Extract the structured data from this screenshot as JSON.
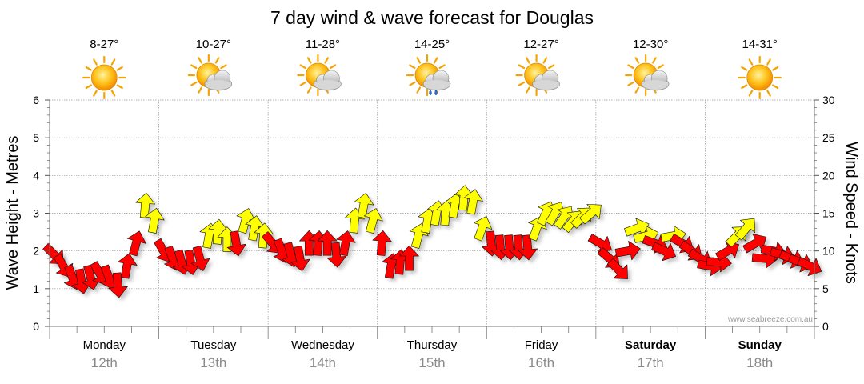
{
  "title": "7 day wind & wave forecast for Douglas",
  "left_axis_label": "Wave Height - Metres",
  "right_axis_label": "Wind Speed - Knots",
  "watermark": "www.seabreeze.com.au",
  "days": [
    {
      "name": "Monday",
      "date": "12th",
      "temp": "8-27°",
      "icon": "sun-icon",
      "bold": false
    },
    {
      "name": "Tuesday",
      "date": "13th",
      "temp": "10-27°",
      "icon": "sun-cloud-icon",
      "bold": false
    },
    {
      "name": "Wednesday",
      "date": "14th",
      "temp": "11-28°",
      "icon": "sun-cloud-icon",
      "bold": false
    },
    {
      "name": "Thursday",
      "date": "15th",
      "temp": "14-25°",
      "icon": "sun-cloud-rain-icon",
      "bold": false
    },
    {
      "name": "Friday",
      "date": "16th",
      "temp": "12-27°",
      "icon": "sun-cloud-icon",
      "bold": false
    },
    {
      "name": "Saturday",
      "date": "17th",
      "temp": "12-30°",
      "icon": "sun-cloud-icon",
      "bold": true
    },
    {
      "name": "Sunday",
      "date": "18th",
      "temp": "14-31°",
      "icon": "sun-icon",
      "bold": true
    }
  ],
  "colors": {
    "strong_wind": "#ff0000",
    "moderate_wind": "#ffff00",
    "grid": "#999999"
  },
  "chart_data": {
    "type": "line",
    "title": "7 day wind & wave forecast for Douglas",
    "ylabel": "Wave Height - Metres",
    "y2label": "Wind Speed - Knots",
    "ylim": [
      0,
      6
    ],
    "y2lim": [
      0,
      30
    ],
    "yticks": [
      "0",
      "1",
      "2",
      "3",
      "4",
      "5",
      "6"
    ],
    "y2ticks": [
      "0",
      "5",
      "10",
      "15",
      "20",
      "25",
      "30"
    ],
    "grid": true,
    "series": [
      {
        "name": "Wind Speed - Knots",
        "marker": "arrow",
        "values": [
          {
            "day": 0,
            "h": 1,
            "speed": 9.5,
            "dir": 135,
            "color": "red"
          },
          {
            "day": 0,
            "h": 3,
            "speed": 8,
            "dir": 150,
            "color": "red"
          },
          {
            "day": 0,
            "h": 5,
            "speed": 6.5,
            "dir": 160,
            "color": "red"
          },
          {
            "day": 0,
            "h": 7,
            "speed": 6,
            "dir": 170,
            "color": "red"
          },
          {
            "day": 0,
            "h": 9,
            "speed": 6.5,
            "dir": 165,
            "color": "red"
          },
          {
            "day": 0,
            "h": 11,
            "speed": 7,
            "dir": 150,
            "color": "red"
          },
          {
            "day": 0,
            "h": 13,
            "speed": 6.5,
            "dir": 160,
            "color": "red"
          },
          {
            "day": 0,
            "h": 15,
            "speed": 5.5,
            "dir": 175,
            "color": "red"
          },
          {
            "day": 0,
            "h": 17,
            "speed": 8,
            "dir": 10,
            "color": "red"
          },
          {
            "day": 0,
            "h": 19,
            "speed": 11,
            "dir": 15,
            "color": "red"
          },
          {
            "day": 0,
            "h": 21,
            "speed": 16,
            "dir": 5,
            "color": "yellow"
          },
          {
            "day": 0,
            "h": 23,
            "speed": 14,
            "dir": 10,
            "color": "yellow"
          },
          {
            "day": 1,
            "h": 1,
            "speed": 10,
            "dir": 150,
            "color": "red"
          },
          {
            "day": 1,
            "h": 3,
            "speed": 9,
            "dir": 160,
            "color": "red"
          },
          {
            "day": 1,
            "h": 5,
            "speed": 8.5,
            "dir": 165,
            "color": "red"
          },
          {
            "day": 1,
            "h": 7,
            "speed": 8.5,
            "dir": 170,
            "color": "red"
          },
          {
            "day": 1,
            "h": 9,
            "speed": 9,
            "dir": 165,
            "color": "red"
          },
          {
            "day": 1,
            "h": 11,
            "speed": 12,
            "dir": 10,
            "color": "yellow"
          },
          {
            "day": 1,
            "h": 13,
            "speed": 12.5,
            "dir": 5,
            "color": "yellow"
          },
          {
            "day": 1,
            "h": 15,
            "speed": 11.5,
            "dir": 0,
            "color": "yellow"
          },
          {
            "day": 1,
            "h": 17,
            "speed": 11,
            "dir": 170,
            "color": "red"
          },
          {
            "day": 1,
            "h": 19,
            "speed": 14,
            "dir": 15,
            "color": "yellow"
          },
          {
            "day": 1,
            "h": 21,
            "speed": 13,
            "dir": 10,
            "color": "yellow"
          },
          {
            "day": 1,
            "h": 23,
            "speed": 12,
            "dir": 5,
            "color": "yellow"
          },
          {
            "day": 2,
            "h": 1,
            "speed": 11,
            "dir": 140,
            "color": "red"
          },
          {
            "day": 2,
            "h": 3,
            "speed": 10,
            "dir": 160,
            "color": "red"
          },
          {
            "day": 2,
            "h": 5,
            "speed": 9.5,
            "dir": 165,
            "color": "red"
          },
          {
            "day": 2,
            "h": 7,
            "speed": 9,
            "dir": 170,
            "color": "red"
          },
          {
            "day": 2,
            "h": 9,
            "speed": 11,
            "dir": 0,
            "color": "red"
          },
          {
            "day": 2,
            "h": 11,
            "speed": 11,
            "dir": 5,
            "color": "red"
          },
          {
            "day": 2,
            "h": 13,
            "speed": 11,
            "dir": 0,
            "color": "red"
          },
          {
            "day": 2,
            "h": 15,
            "speed": 9.5,
            "dir": 175,
            "color": "red"
          },
          {
            "day": 2,
            "h": 17,
            "speed": 11,
            "dir": 10,
            "color": "red"
          },
          {
            "day": 2,
            "h": 19,
            "speed": 14,
            "dir": 5,
            "color": "yellow"
          },
          {
            "day": 2,
            "h": 21,
            "speed": 16,
            "dir": 10,
            "color": "yellow"
          },
          {
            "day": 2,
            "h": 23,
            "speed": 14,
            "dir": 15,
            "color": "yellow"
          },
          {
            "day": 3,
            "h": 1,
            "speed": 11,
            "dir": 5,
            "color": "red"
          },
          {
            "day": 3,
            "h": 3,
            "speed": 8,
            "dir": 10,
            "color": "red"
          },
          {
            "day": 3,
            "h": 5,
            "speed": 8.5,
            "dir": 5,
            "color": "red"
          },
          {
            "day": 3,
            "h": 7,
            "speed": 9,
            "dir": 0,
            "color": "red"
          },
          {
            "day": 3,
            "h": 9,
            "speed": 12,
            "dir": 15,
            "color": "yellow"
          },
          {
            "day": 3,
            "h": 11,
            "speed": 14,
            "dir": 10,
            "color": "yellow"
          },
          {
            "day": 3,
            "h": 13,
            "speed": 15,
            "dir": 10,
            "color": "yellow"
          },
          {
            "day": 3,
            "h": 15,
            "speed": 15,
            "dir": 5,
            "color": "yellow"
          },
          {
            "day": 3,
            "h": 17,
            "speed": 16,
            "dir": 10,
            "color": "yellow"
          },
          {
            "day": 3,
            "h": 19,
            "speed": 17,
            "dir": 5,
            "color": "yellow"
          },
          {
            "day": 3,
            "h": 21,
            "speed": 16.5,
            "dir": 10,
            "color": "yellow"
          },
          {
            "day": 3,
            "h": 23,
            "speed": 13,
            "dir": 20,
            "color": "yellow"
          },
          {
            "day": 4,
            "h": 1,
            "speed": 11,
            "dir": 175,
            "color": "red"
          },
          {
            "day": 4,
            "h": 3,
            "speed": 10.5,
            "dir": 175,
            "color": "red"
          },
          {
            "day": 4,
            "h": 5,
            "speed": 10.5,
            "dir": 175,
            "color": "red"
          },
          {
            "day": 4,
            "h": 7,
            "speed": 10.5,
            "dir": 175,
            "color": "red"
          },
          {
            "day": 4,
            "h": 9,
            "speed": 10.5,
            "dir": 175,
            "color": "red"
          },
          {
            "day": 4,
            "h": 11,
            "speed": 13,
            "dir": 20,
            "color": "yellow"
          },
          {
            "day": 4,
            "h": 13,
            "speed": 15,
            "dir": 25,
            "color": "yellow"
          },
          {
            "day": 4,
            "h": 15,
            "speed": 15,
            "dir": 30,
            "color": "yellow"
          },
          {
            "day": 4,
            "h": 17,
            "speed": 14.5,
            "dir": 35,
            "color": "yellow"
          },
          {
            "day": 4,
            "h": 19,
            "speed": 14,
            "dir": 40,
            "color": "yellow"
          },
          {
            "day": 4,
            "h": 21,
            "speed": 14.5,
            "dir": 45,
            "color": "yellow"
          },
          {
            "day": 4,
            "h": 23,
            "speed": 15,
            "dir": 50,
            "color": "yellow"
          },
          {
            "day": 5,
            "h": 1,
            "speed": 11,
            "dir": 120,
            "color": "red"
          },
          {
            "day": 5,
            "h": 3,
            "speed": 9,
            "dir": 130,
            "color": "red"
          },
          {
            "day": 5,
            "h": 5,
            "speed": 7.5,
            "dir": 135,
            "color": "red"
          },
          {
            "day": 5,
            "h": 7,
            "speed": 10,
            "dir": 80,
            "color": "red"
          },
          {
            "day": 5,
            "h": 9,
            "speed": 13,
            "dir": 70,
            "color": "yellow"
          },
          {
            "day": 5,
            "h": 11,
            "speed": 12,
            "dir": 75,
            "color": "yellow"
          },
          {
            "day": 5,
            "h": 13,
            "speed": 11,
            "dir": 110,
            "color": "red"
          },
          {
            "day": 5,
            "h": 15,
            "speed": 10,
            "dir": 115,
            "color": "red"
          },
          {
            "day": 5,
            "h": 17,
            "speed": 12,
            "dir": 80,
            "color": "yellow"
          },
          {
            "day": 5,
            "h": 19,
            "speed": 11,
            "dir": 120,
            "color": "red"
          },
          {
            "day": 5,
            "h": 21,
            "speed": 10,
            "dir": 125,
            "color": "red"
          },
          {
            "day": 5,
            "h": 23,
            "speed": 9,
            "dir": 120,
            "color": "red"
          },
          {
            "day": 6,
            "h": 1,
            "speed": 8,
            "dir": 100,
            "color": "red"
          },
          {
            "day": 6,
            "h": 3,
            "speed": 8.5,
            "dir": 95,
            "color": "red"
          },
          {
            "day": 6,
            "h": 5,
            "speed": 10,
            "dir": 60,
            "color": "red"
          },
          {
            "day": 6,
            "h": 7,
            "speed": 12,
            "dir": 45,
            "color": "yellow"
          },
          {
            "day": 6,
            "h": 9,
            "speed": 13,
            "dir": 40,
            "color": "yellow"
          },
          {
            "day": 6,
            "h": 11,
            "speed": 11,
            "dir": 60,
            "color": "red"
          },
          {
            "day": 6,
            "h": 13,
            "speed": 9,
            "dir": 95,
            "color": "red"
          },
          {
            "day": 6,
            "h": 15,
            "speed": 10,
            "dir": 100,
            "color": "red"
          },
          {
            "day": 6,
            "h": 17,
            "speed": 9.5,
            "dir": 105,
            "color": "red"
          },
          {
            "day": 6,
            "h": 19,
            "speed": 9,
            "dir": 110,
            "color": "red"
          },
          {
            "day": 6,
            "h": 21,
            "speed": 8.5,
            "dir": 110,
            "color": "red"
          },
          {
            "day": 6,
            "h": 23,
            "speed": 8,
            "dir": 115,
            "color": "red"
          }
        ]
      }
    ]
  }
}
